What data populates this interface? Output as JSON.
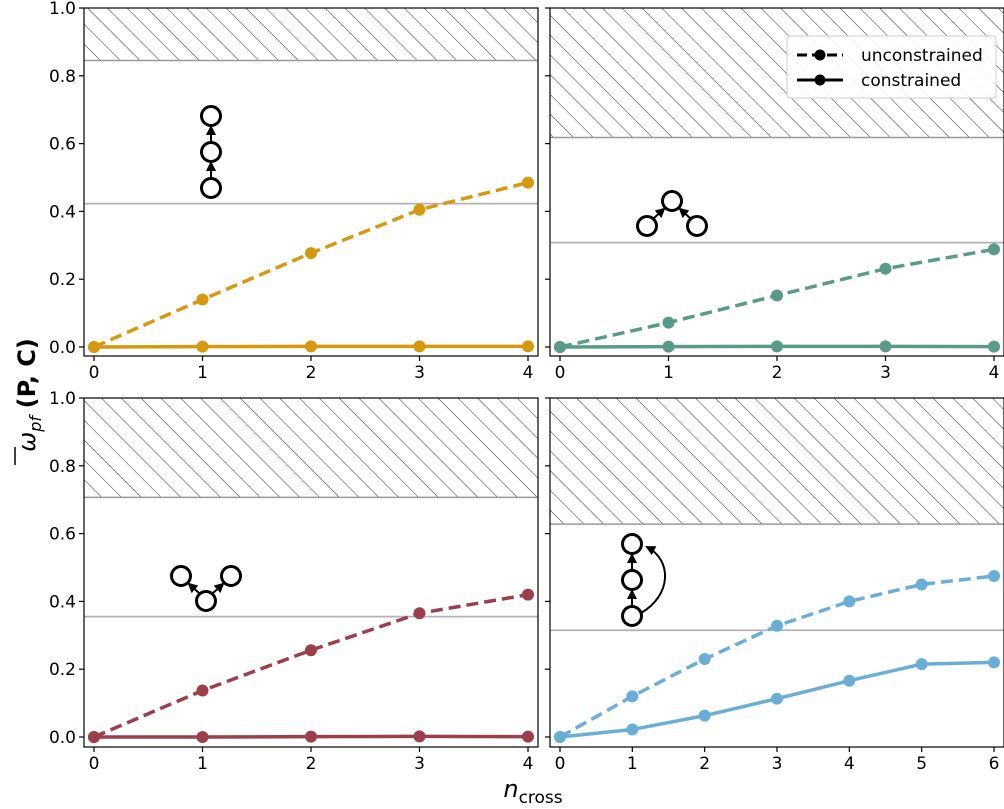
{
  "ylabel": "ω̄ (P, C)",
  "ylabel_parts": {
    "symbol": "ω",
    "subscript": "pf",
    "args": "(P, C)"
  },
  "xlabel_parts": {
    "symbol": "n",
    "subscript": "cross"
  },
  "legend": {
    "placement": "upper-right of top-right panel",
    "entries": [
      {
        "label": "unconstrained",
        "style": "dashed"
      },
      {
        "label": "constrained",
        "style": "solid"
      }
    ]
  },
  "colors": {
    "top_left": "#d4990f",
    "top_right": "#5a9a8a",
    "bottom_left": "#9b3f4a",
    "bottom_right": "#6aaed6",
    "hatch": "#333333",
    "reference_line": "#b3b3b3"
  },
  "chart_data": [
    {
      "panel": "top-left",
      "type": "line",
      "motif_icon": "chain-motif-icon",
      "x": [
        0,
        1,
        2,
        3,
        4
      ],
      "xticks": [
        "0",
        "1",
        "2",
        "3",
        "4"
      ],
      "ylim": [
        0,
        1
      ],
      "yticks": [
        "0.0",
        "0.2",
        "0.4",
        "0.6",
        "0.8",
        "1.0"
      ],
      "hatched_region_above": 0.845,
      "reference_line": 0.423,
      "series": [
        {
          "style": "dashed",
          "values": [
            0.0,
            0.14,
            0.277,
            0.405,
            0.485
          ]
        },
        {
          "style": "solid",
          "values": [
            0.0,
            0.001,
            0.002,
            0.002,
            0.002
          ]
        }
      ]
    },
    {
      "panel": "top-right",
      "type": "line",
      "motif_icon": "convergent-motif-icon",
      "x": [
        0,
        1,
        2,
        3,
        4
      ],
      "xticks": [
        "0",
        "1",
        "2",
        "3",
        "4"
      ],
      "ylim": [
        0,
        1
      ],
      "yticks": [],
      "hatched_region_above": 0.618,
      "reference_line": 0.308,
      "series": [
        {
          "style": "dashed",
          "values": [
            0.0,
            0.072,
            0.152,
            0.231,
            0.288
          ]
        },
        {
          "style": "solid",
          "values": [
            0.0,
            0.001,
            0.002,
            0.002,
            0.001
          ]
        }
      ]
    },
    {
      "panel": "bottom-left",
      "type": "line",
      "motif_icon": "divergent-motif-icon",
      "x": [
        0,
        1,
        2,
        3,
        4
      ],
      "xticks": [
        "0",
        "1",
        "2",
        "3",
        "4"
      ],
      "ylim": [
        0,
        1
      ],
      "yticks": [
        "0.0",
        "0.2",
        "0.4",
        "0.6",
        "0.8",
        "1.0"
      ],
      "hatched_region_above": 0.707,
      "reference_line": 0.355,
      "series": [
        {
          "style": "dashed",
          "values": [
            0.0,
            0.137,
            0.256,
            0.365,
            0.42
          ]
        },
        {
          "style": "solid",
          "values": [
            0.0,
            0.0,
            0.001,
            0.002,
            0.001
          ]
        }
      ]
    },
    {
      "panel": "bottom-right",
      "type": "line",
      "motif_icon": "feedforward-motif-icon",
      "x": [
        0,
        1,
        2,
        3,
        4,
        5,
        6
      ],
      "xticks": [
        "0",
        "1",
        "2",
        "3",
        "4",
        "5",
        "6"
      ],
      "ylim": [
        0,
        1
      ],
      "yticks": [],
      "hatched_region_above": 0.628,
      "reference_line": 0.315,
      "series": [
        {
          "style": "dashed",
          "values": [
            0.0,
            0.12,
            0.23,
            0.328,
            0.4,
            0.45,
            0.475
          ]
        },
        {
          "style": "solid",
          "values": [
            0.0,
            0.022,
            0.063,
            0.113,
            0.166,
            0.215,
            0.22
          ]
        }
      ]
    }
  ]
}
